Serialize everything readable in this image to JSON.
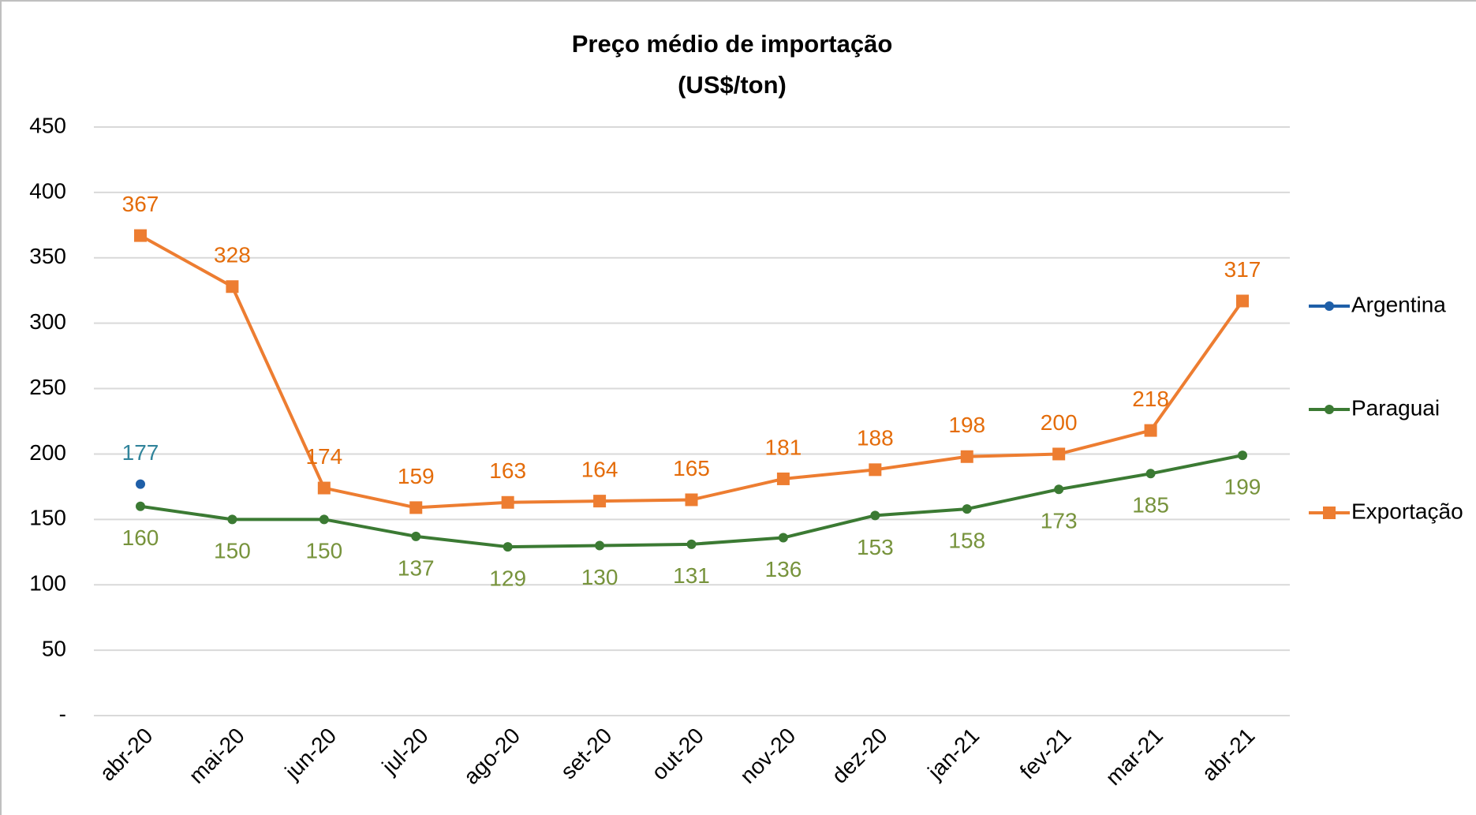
{
  "chart_data": {
    "type": "line",
    "title": "Preço médio de importação",
    "subtitle": "(US$/ton)",
    "categories": [
      "abr-20",
      "mai-20",
      "jun-20",
      "jul-20",
      "ago-20",
      "set-20",
      "out-20",
      "nov-20",
      "dez-20",
      "jan-21",
      "fev-21",
      "mar-21",
      "abr-21"
    ],
    "series": [
      {
        "name": "Argentina",
        "color": "#1f5fa8",
        "label_color": "#31849b",
        "marker": "circle",
        "values": [
          177,
          null,
          null,
          null,
          null,
          null,
          null,
          null,
          null,
          null,
          null,
          null,
          null
        ]
      },
      {
        "name": "Paraguai",
        "color": "#3b7a33",
        "label_color": "#77933c",
        "marker": "circle",
        "label_position": "below",
        "values": [
          160,
          150,
          150,
          137,
          129,
          130,
          131,
          136,
          153,
          158,
          173,
          185,
          199
        ]
      },
      {
        "name": "Exportação",
        "color": "#ed7d31",
        "label_color": "#e46c0a",
        "marker": "square",
        "values": [
          367,
          328,
          174,
          159,
          163,
          164,
          165,
          181,
          188,
          198,
          200,
          218,
          317
        ]
      }
    ],
    "ylim": [
      0,
      450
    ],
    "yticks": [
      {
        "value": 0,
        "label": "-"
      },
      50,
      100,
      150,
      200,
      250,
      300,
      350,
      400,
      450
    ],
    "grid": true,
    "legend": "right"
  }
}
